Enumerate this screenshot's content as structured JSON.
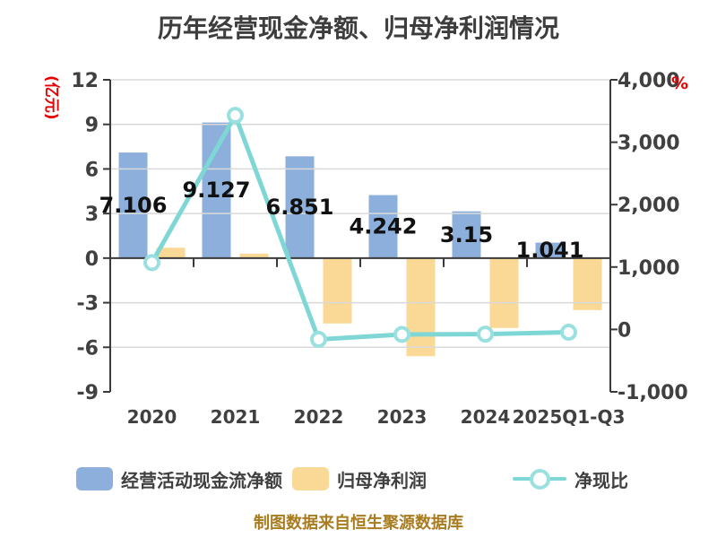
{
  "chart_data": {
    "type": "combo",
    "title": "历年经营现金净额、归母净利润情况",
    "footer": "制图数据来自恒生聚源数据库",
    "categories": [
      "2020",
      "2021",
      "2022",
      "2023",
      "2024",
      "2025Q1-Q3"
    ],
    "left_axis": {
      "unit": "(亿元)",
      "min": -9,
      "max": 12,
      "ticks": [
        12,
        9,
        6,
        3,
        0,
        -3,
        -6,
        -9
      ]
    },
    "right_axis": {
      "unit": "%",
      "min": -1000,
      "max": 4000,
      "ticks": [
        {
          "label": "4,000",
          "value": 4000
        },
        {
          "label": "3,000",
          "value": 3000
        },
        {
          "label": "2,000",
          "value": 2000
        },
        {
          "label": "1,000",
          "value": 1000
        },
        {
          "label": "0",
          "value": 0
        },
        {
          "label": "-1,000",
          "value": -1000
        }
      ]
    },
    "series": [
      {
        "name": "经营活动现金流净额",
        "type": "bar",
        "axis": "left",
        "color": "#8dafdc",
        "values": [
          7.106,
          9.127,
          6.851,
          4.242,
          3.15,
          1.041
        ],
        "labels": [
          "7.106",
          "9.127",
          "6.851",
          "4.242",
          "3.15",
          "1.041"
        ]
      },
      {
        "name": "归母净利润",
        "type": "bar",
        "axis": "left",
        "color": "#fad996",
        "values": [
          0.7,
          0.3,
          -4.4,
          -6.6,
          -4.7,
          -3.5
        ]
      },
      {
        "name": "净现比",
        "type": "line",
        "axis": "right",
        "color": "#7ed7d4",
        "marker_ring_color": "#9be0e0",
        "values": [
          1070,
          3430,
          -160,
          -80,
          -75,
          -45
        ]
      }
    ],
    "colors": {
      "grid": "#d9d9d9",
      "axis": "#3a3a3a",
      "tick_text": "#404040",
      "value_label": "#111111",
      "unit_red": "#e60000",
      "title_text": "#3d3d3d",
      "footer_text": "#a87c1f"
    }
  }
}
